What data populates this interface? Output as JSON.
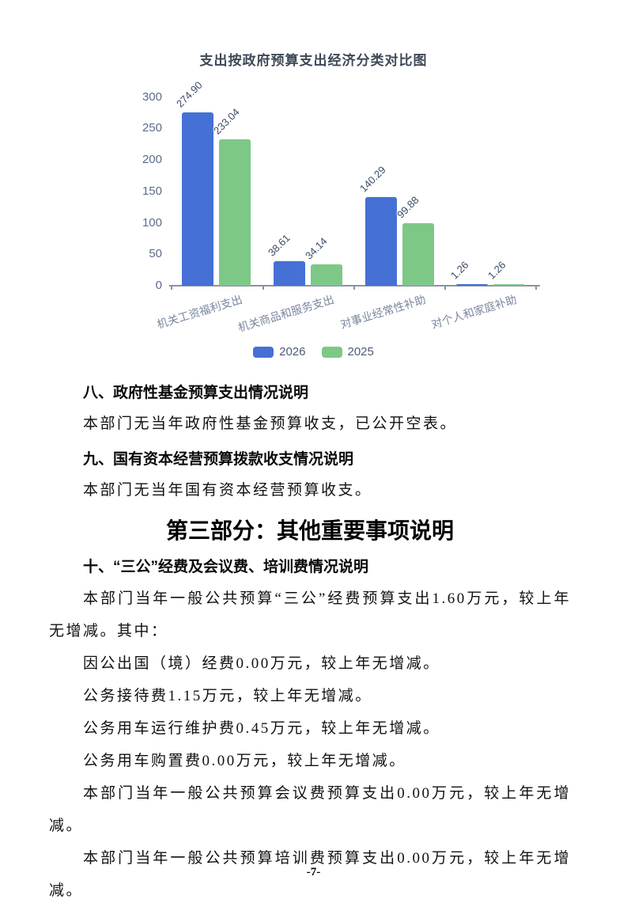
{
  "chart": {
    "title": "支出按政府预算支出经济分类对比图"
  },
  "chart_data": {
    "type": "bar",
    "title": "支出按政府预算支出经济分类对比图",
    "categories": [
      "机关工资福利支出",
      "机关商品和服务支出",
      "对事业经常性补助",
      "对个人和家庭补助"
    ],
    "series": [
      {
        "name": "2026",
        "color": "#4570d6",
        "values": [
          274.9,
          38.61,
          140.29,
          1.26
        ]
      },
      {
        "name": "2025",
        "color": "#7dc887",
        "values": [
          233.04,
          34.14,
          99.88,
          1.26
        ]
      }
    ],
    "xlabel": "",
    "ylabel": "",
    "ylim": [
      0,
      300
    ],
    "yticks": [
      0,
      50,
      100,
      150,
      200,
      250,
      300
    ],
    "grid": false,
    "legend_position": "bottom",
    "value_labels": true
  },
  "content": {
    "section8_heading": "八、政府性基金预算支出情况说明",
    "section8_body": "本部门无当年政府性基金预算收支，已公开空表。",
    "section9_heading": "九、国有资本经营预算拨款收支情况说明",
    "section9_body": "本部门无当年国有资本经营预算收支。",
    "part3_heading": "第三部分：其他重要事项说明",
    "section10_heading": "十、“三公”经费及会议费、培训费情况说明",
    "paragraphs": [
      "本部门当年一般公共预算“三公”经费预算支出1.60万元，较上年无增减。其中：",
      "因公出国（境）经费0.00万元，较上年无增减。",
      "公务接待费1.15万元，较上年无增减。",
      "公务用车运行维护费0.45万元，较上年无增减。",
      "公务用车购置费0.00万元，较上年无增减。",
      "本部门当年一般公共预算会议费预算支出0.00万元，较上年无增减。",
      "本部门当年一般公共预算培训费预算支出0.00万元，较上年无增减。"
    ]
  },
  "page_number": "-7-"
}
